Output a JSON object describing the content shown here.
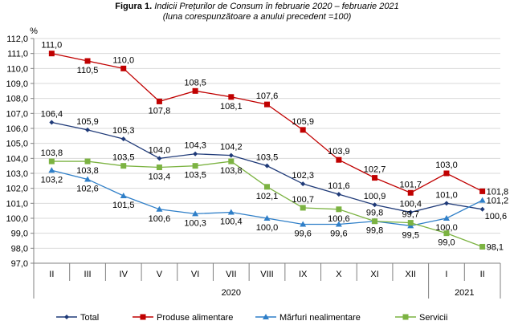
{
  "chart_data": {
    "type": "line",
    "title_prefix": "Figura 1.",
    "title": "Indicii Prețurilor de Consum în februarie 2020 – februarie 2021",
    "subtitle": "(luna corespunzătoare a anului precedent =100)",
    "ylabel": "%",
    "xlabel": "",
    "ylim": [
      97,
      112
    ],
    "ytick_step": 1,
    "ytick_labels": [
      "97,0",
      "98,0",
      "99,0",
      "100,0",
      "101,0",
      "102,0",
      "103,0",
      "104,0",
      "105,0",
      "106,0",
      "107,0",
      "108,0",
      "109,0",
      "110,0",
      "111,0",
      "112,0"
    ],
    "categories": [
      "II",
      "III",
      "IV",
      "V",
      "VI",
      "VII",
      "VIII",
      "IX",
      "X",
      "XI",
      "XII",
      "I",
      "II"
    ],
    "year_groups": [
      {
        "label": "2020",
        "count": 11
      },
      {
        "label": "2021",
        "count": 2
      }
    ],
    "grid": true,
    "legend_position": "bottom",
    "series": [
      {
        "name": "Total",
        "color": "#1F3A78",
        "marker": "diamond",
        "values": [
          106.4,
          105.9,
          105.3,
          104.0,
          104.3,
          104.2,
          103.5,
          102.3,
          101.6,
          100.9,
          100.4,
          101.0,
          100.6
        ],
        "labels": [
          "106,4",
          "105,9",
          "105,3",
          "104,0",
          "104,3",
          "104,2",
          "103,5",
          "102,3",
          "101,6",
          "100,9",
          "100,4",
          "101,0",
          "100,6"
        ],
        "label_pos": [
          "above",
          "above",
          "above",
          "above",
          "above",
          "above",
          "above",
          "above",
          "above",
          "above",
          "above",
          "above",
          "right-below"
        ]
      },
      {
        "name": "Produse alimentare",
        "color": "#C00000",
        "marker": "square",
        "values": [
          111.0,
          110.5,
          110.0,
          107.8,
          108.5,
          108.1,
          107.6,
          105.9,
          103.9,
          102.7,
          101.7,
          103.0,
          101.8
        ],
        "labels": [
          "111,0",
          "110,5",
          "110,0",
          "107,8",
          "108,5",
          "108,1",
          "107,6",
          "105,9",
          "103,9",
          "102,7",
          "101,7",
          "103,0",
          "101,8"
        ],
        "label_pos": [
          "above",
          "below",
          "above",
          "below",
          "above",
          "below",
          "above",
          "above",
          "above",
          "above",
          "above",
          "above",
          "right"
        ]
      },
      {
        "name": "Mărfuri nealimentare",
        "color": "#2F7FC8",
        "marker": "triangle",
        "values": [
          103.2,
          102.6,
          101.5,
          100.6,
          100.3,
          100.4,
          100.0,
          99.6,
          99.6,
          99.8,
          99.5,
          100.0,
          101.2
        ],
        "labels": [
          "103,2",
          "102,6",
          "101,5",
          "100,6",
          "100,3",
          "100,4",
          "100,0",
          "99,6",
          "99,6",
          "99,8",
          "99,5",
          "100,0",
          "101,2"
        ],
        "label_pos": [
          "below",
          "below",
          "below",
          "below",
          "below",
          "below",
          "below",
          "below",
          "below",
          "below",
          "below",
          "below",
          "right"
        ]
      },
      {
        "name": "Servicii",
        "color": "#7CB342",
        "marker": "square",
        "values": [
          103.8,
          103.8,
          103.5,
          103.4,
          103.5,
          103.8,
          102.1,
          100.7,
          100.6,
          99.8,
          99.7,
          99.0,
          98.1
        ],
        "labels": [
          "103,8",
          "103,8",
          "103,5",
          "103,4",
          "103,5",
          "103,8",
          "102,1",
          "100,7",
          "100,6",
          "99,8",
          "99,7",
          "99,0",
          "98,1"
        ],
        "label_pos": [
          "above",
          "below",
          "above",
          "below",
          "below",
          "below",
          "below",
          "above",
          "below",
          "above",
          "above",
          "below",
          "right"
        ]
      }
    ]
  }
}
